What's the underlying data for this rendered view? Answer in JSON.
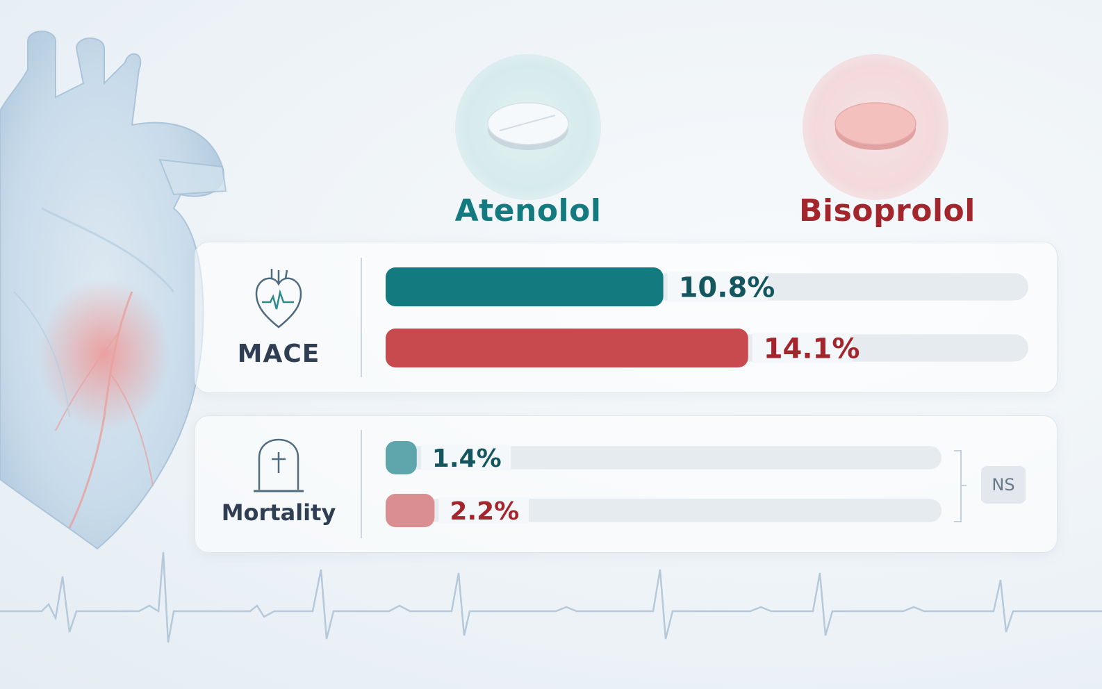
{
  "drugs": [
    {
      "name": "Atenolol",
      "color": "#137b80"
    },
    {
      "name": "Bisoprolol",
      "color": "#a3262d"
    }
  ],
  "ns_label": "NS",
  "chart_data": [
    {
      "type": "bar",
      "orientation": "horizontal",
      "title": "MACE",
      "icon": "heart-icon",
      "categories": [
        "Atenolol",
        "Bisoprolol"
      ],
      "values": [
        10.8,
        14.1
      ],
      "value_labels": [
        "10.8%",
        "14.1%"
      ],
      "unit": "%",
      "xlim": [
        0,
        25
      ],
      "colors": [
        "#137b80",
        "#c8494e"
      ],
      "label_colors": [
        "#14565e",
        "#a3262d"
      ]
    },
    {
      "type": "bar",
      "orientation": "horizontal",
      "title": "Mortality",
      "icon": "tombstone-icon",
      "categories": [
        "Atenolol",
        "Bisoprolol"
      ],
      "values": [
        1.4,
        2.2
      ],
      "value_labels": [
        "1.4%",
        "2.2%"
      ],
      "unit": "%",
      "xlim": [
        0,
        25
      ],
      "colors": [
        "#5ea6ac",
        "#db8e91"
      ],
      "label_colors": [
        "#14565e",
        "#a3262d"
      ],
      "significance": "NS"
    }
  ]
}
